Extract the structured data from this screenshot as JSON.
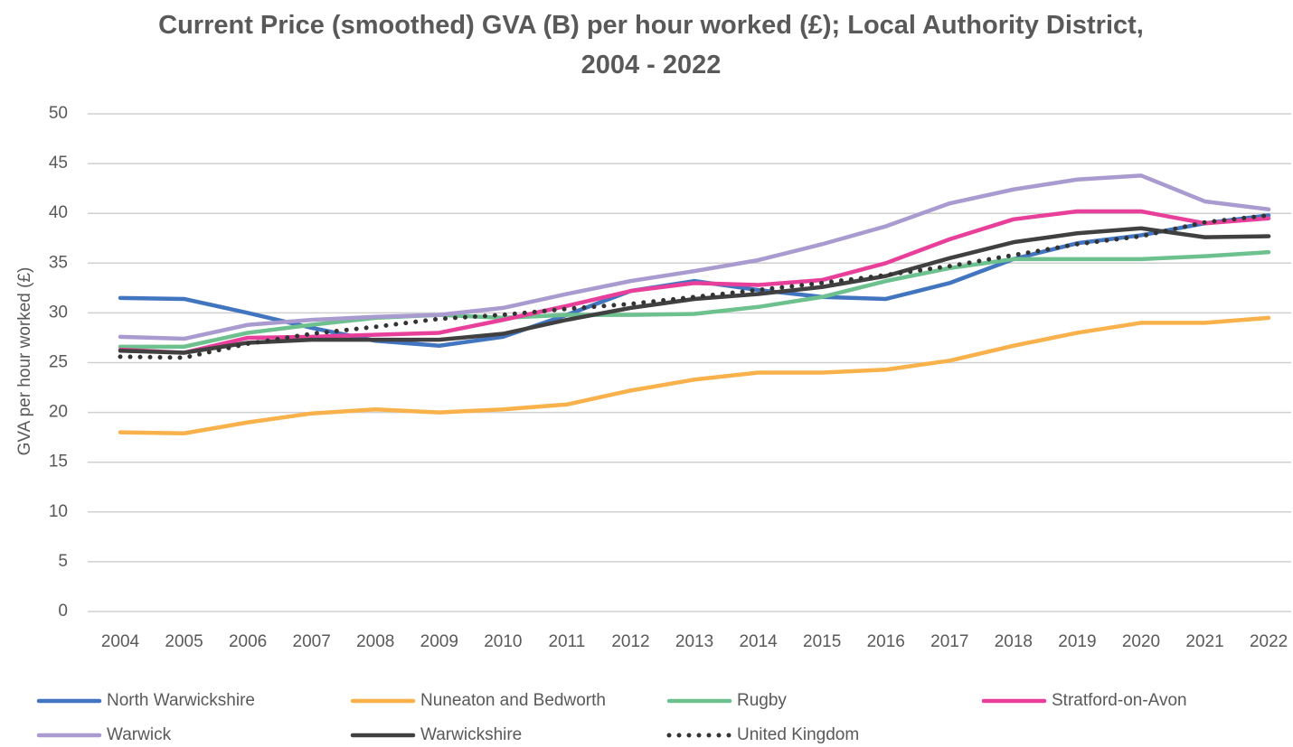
{
  "chart_data": {
    "type": "line",
    "title": "Current Price (smoothed) GVA (B) per hour worked (£); Local Authority District,  2004 - 2022",
    "y_label": "GVA per hour worked (£)",
    "categories": [
      "2004",
      "2005",
      "2006",
      "2007",
      "2008",
      "2009",
      "2010",
      "2011",
      "2012",
      "2013",
      "2014",
      "2015",
      "2016",
      "2017",
      "2018",
      "2019",
      "2020",
      "2021",
      "2022"
    ],
    "ylim": [
      0,
      50
    ],
    "yticks": [
      0,
      5,
      10,
      15,
      20,
      25,
      30,
      35,
      40,
      45,
      50
    ],
    "grid": true,
    "legend": "bottom",
    "series": [
      {
        "name": "North Warwickshire",
        "color": "#4275bf",
        "style": "solid",
        "values": [
          31.5,
          31.4,
          30.0,
          28.5,
          27.2,
          26.7,
          27.6,
          29.8,
          32.2,
          33.2,
          32.3,
          31.6,
          31.4,
          33.0,
          35.4,
          37.0,
          37.8,
          39.0,
          39.8
        ]
      },
      {
        "name": "Nuneaton and Bedworth",
        "color": "#f9b14b",
        "style": "solid",
        "values": [
          18.0,
          17.9,
          19.0,
          19.9,
          20.3,
          20.0,
          20.3,
          20.8,
          22.2,
          23.3,
          24.0,
          24.0,
          24.3,
          25.2,
          26.7,
          28.0,
          29.0,
          29.0,
          29.5
        ]
      },
      {
        "name": "Rugby",
        "color": "#6dc18e",
        "style": "solid",
        "values": [
          26.6,
          26.6,
          28.0,
          28.8,
          29.5,
          29.8,
          29.5,
          29.8,
          29.8,
          29.9,
          30.6,
          31.6,
          33.2,
          34.5,
          35.4,
          35.4,
          35.4,
          35.7,
          36.1
        ]
      },
      {
        "name": "Stratford-on-Avon",
        "color": "#e8409a",
        "style": "solid",
        "values": [
          26.3,
          26.0,
          27.5,
          27.6,
          27.8,
          28.0,
          29.3,
          30.7,
          32.2,
          33.0,
          32.8,
          33.3,
          35.0,
          37.4,
          39.4,
          40.2,
          40.2,
          39.0,
          39.5
        ]
      },
      {
        "name": "Warwick",
        "color": "#a99bd0",
        "style": "solid",
        "values": [
          27.6,
          27.4,
          28.8,
          29.3,
          29.6,
          29.8,
          30.5,
          31.9,
          33.2,
          34.2,
          35.3,
          36.9,
          38.7,
          41.0,
          42.4,
          43.4,
          43.8,
          41.2,
          40.4
        ]
      },
      {
        "name": "Warwickshire",
        "color": "#404040",
        "style": "solid",
        "values": [
          26.2,
          26.0,
          27.0,
          27.3,
          27.3,
          27.3,
          27.9,
          29.3,
          30.5,
          31.4,
          31.9,
          32.6,
          33.7,
          35.5,
          37.1,
          38.0,
          38.5,
          37.6,
          37.7
        ]
      },
      {
        "name": "United Kingdom",
        "color": "#333333",
        "style": "dotted",
        "values": [
          25.6,
          25.5,
          26.9,
          27.9,
          28.6,
          29.4,
          29.8,
          30.4,
          30.9,
          31.6,
          32.3,
          33.0,
          33.8,
          34.7,
          35.8,
          36.9,
          37.7,
          39.1,
          39.8
        ]
      }
    ]
  }
}
